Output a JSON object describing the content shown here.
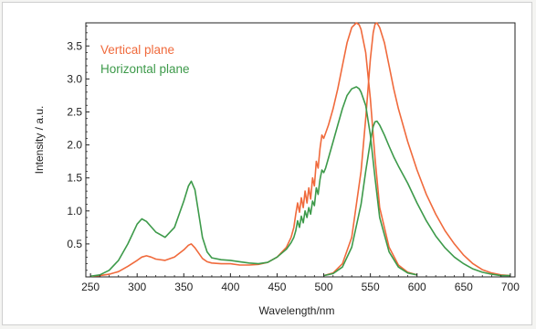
{
  "chart_data": {
    "type": "line",
    "title": "",
    "xlabel": "Wavelength/nm",
    "ylabel": "Intensity / a.u.",
    "xlim": [
      245,
      705
    ],
    "ylim": [
      0,
      3.85
    ],
    "xticks": [
      "250",
      "300",
      "350",
      "400",
      "450",
      "500",
      "550",
      "600",
      "650",
      "700"
    ],
    "yticks": [
      "0.5",
      "1.0",
      "1.5",
      "2.0",
      "2.5",
      "3.0",
      "3.5"
    ],
    "grid": false,
    "legend_placement": "top-left",
    "colors": {
      "vertical": "#f06a3c",
      "horizontal": "#3d9a4a"
    },
    "series": [
      {
        "name": "Vertical plane",
        "group": "vertical",
        "x": [
          250,
          260,
          270,
          280,
          290,
          300,
          305,
          310,
          315,
          320,
          330,
          340,
          350,
          355,
          358,
          362,
          365,
          370,
          375,
          380,
          390,
          400,
          410,
          420,
          430,
          440,
          450,
          460,
          465,
          468,
          470,
          472,
          474,
          476,
          478,
          480,
          482,
          484,
          486,
          488,
          490,
          492,
          494,
          496,
          498,
          500,
          502,
          505,
          510,
          515,
          520,
          525,
          530,
          535,
          538,
          540,
          545,
          550,
          555,
          560,
          570,
          580,
          590,
          600
        ],
        "y": [
          0.01,
          0.02,
          0.04,
          0.08,
          0.16,
          0.25,
          0.3,
          0.32,
          0.3,
          0.27,
          0.25,
          0.3,
          0.41,
          0.48,
          0.5,
          0.44,
          0.38,
          0.28,
          0.23,
          0.21,
          0.2,
          0.2,
          0.18,
          0.18,
          0.19,
          0.22,
          0.3,
          0.45,
          0.6,
          0.75,
          0.95,
          1.12,
          0.98,
          1.2,
          1.05,
          1.3,
          1.12,
          1.35,
          1.18,
          1.5,
          1.38,
          1.75,
          1.65,
          1.95,
          2.15,
          2.1,
          2.18,
          2.3,
          2.55,
          2.85,
          3.2,
          3.55,
          3.78,
          3.85,
          3.82,
          3.75,
          3.4,
          2.7,
          1.8,
          1.05,
          0.45,
          0.18,
          0.07,
          0.03
        ]
      },
      {
        "name": "Vertical plane",
        "group": "vertical",
        "x": [
          500,
          510,
          520,
          530,
          540,
          545,
          550,
          553,
          555,
          557,
          560,
          565,
          570,
          575,
          580,
          590,
          600,
          610,
          620,
          630,
          640,
          650,
          660,
          670,
          680,
          690,
          700
        ],
        "y": [
          0.02,
          0.06,
          0.2,
          0.6,
          1.6,
          2.4,
          3.3,
          3.7,
          3.83,
          3.85,
          3.78,
          3.55,
          3.2,
          2.85,
          2.55,
          2.05,
          1.62,
          1.25,
          0.95,
          0.7,
          0.5,
          0.33,
          0.2,
          0.11,
          0.06,
          0.03,
          0.02
        ]
      },
      {
        "name": "Horizontal plane",
        "group": "horizontal",
        "x": [
          250,
          260,
          270,
          280,
          290,
          300,
          305,
          310,
          315,
          320,
          330,
          340,
          350,
          355,
          358,
          362,
          365,
          370,
          375,
          380,
          390,
          400,
          410,
          420,
          430,
          440,
          450,
          460,
          465,
          468,
          470,
          472,
          474,
          476,
          478,
          480,
          482,
          484,
          486,
          488,
          490,
          492,
          494,
          496,
          498,
          500,
          502,
          505,
          510,
          515,
          520,
          525,
          530,
          535,
          538,
          540,
          545,
          550,
          555,
          560,
          570,
          580,
          590,
          600
        ],
        "y": [
          0.01,
          0.03,
          0.1,
          0.25,
          0.5,
          0.8,
          0.88,
          0.84,
          0.76,
          0.68,
          0.6,
          0.75,
          1.15,
          1.38,
          1.45,
          1.32,
          1.05,
          0.6,
          0.38,
          0.29,
          0.26,
          0.25,
          0.23,
          0.21,
          0.2,
          0.22,
          0.3,
          0.42,
          0.52,
          0.6,
          0.7,
          0.85,
          0.75,
          0.92,
          0.82,
          1.0,
          0.9,
          1.05,
          0.95,
          1.15,
          1.08,
          1.35,
          1.25,
          1.48,
          1.62,
          1.58,
          1.65,
          1.8,
          2.05,
          2.3,
          2.55,
          2.75,
          2.85,
          2.88,
          2.85,
          2.8,
          2.6,
          2.15,
          1.5,
          0.9,
          0.38,
          0.15,
          0.06,
          0.03
        ]
      },
      {
        "name": "Horizontal plane",
        "group": "horizontal",
        "x": [
          500,
          510,
          520,
          530,
          540,
          545,
          550,
          553,
          555,
          557,
          560,
          565,
          570,
          575,
          580,
          590,
          600,
          610,
          620,
          630,
          640,
          650,
          660,
          670,
          680,
          690,
          700
        ],
        "y": [
          0.02,
          0.05,
          0.15,
          0.45,
          1.1,
          1.6,
          2.05,
          2.28,
          2.35,
          2.36,
          2.3,
          2.15,
          1.98,
          1.82,
          1.68,
          1.42,
          1.12,
          0.85,
          0.62,
          0.44,
          0.3,
          0.2,
          0.12,
          0.07,
          0.04,
          0.02,
          0.02
        ]
      }
    ]
  }
}
